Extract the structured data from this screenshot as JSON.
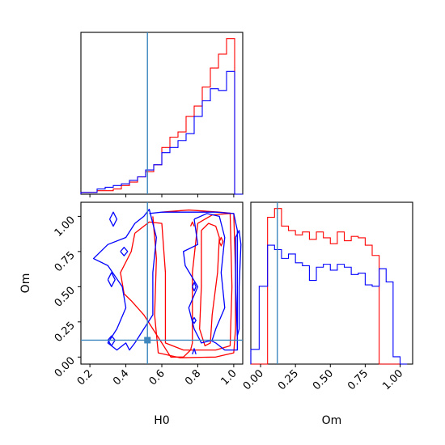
{
  "chart_data": [
    {
      "panel": "H0 marginal",
      "type": "step-histogram",
      "xlim": [
        0.15,
        1.05
      ],
      "bin_edges": [
        0.15,
        0.195,
        0.24,
        0.285,
        0.33,
        0.375,
        0.42,
        0.465,
        0.51,
        0.555,
        0.6,
        0.645,
        0.69,
        0.735,
        0.78,
        0.825,
        0.87,
        0.915,
        0.96,
        1.005,
        1.05
      ],
      "series": [
        {
          "color": "#ff0000",
          "values": [
            1,
            1,
            2,
            2,
            3,
            5,
            7,
            10,
            13,
            17,
            27,
            33,
            36,
            45,
            51,
            62,
            73,
            81,
            90,
            0
          ]
        },
        {
          "color": "#0000ff",
          "values": [
            1,
            1,
            3,
            4,
            5,
            6,
            8,
            10,
            14,
            17,
            24,
            27,
            31,
            35,
            45,
            54,
            61,
            60,
            71,
            0
          ]
        }
      ],
      "truth": 0.52,
      "y_tick_labels": false
    },
    {
      "panel": "Om marginal",
      "type": "step-histogram",
      "xlim": [
        -0.07,
        1.09
      ],
      "bin_edges": [
        -0.07,
        -0.01,
        0.05,
        0.1,
        0.15,
        0.2,
        0.25,
        0.3,
        0.35,
        0.4,
        0.45,
        0.5,
        0.55,
        0.6,
        0.65,
        0.7,
        0.75,
        0.8,
        0.85,
        0.9,
        0.95,
        1.0,
        1.05
      ],
      "series": [
        {
          "color": "#ff0000",
          "values": [
            0,
            0,
            100,
            106,
            94,
            91,
            88,
            90,
            85,
            90,
            86,
            82,
            90,
            84,
            87,
            86,
            81,
            74,
            0,
            0,
            0,
            0
          ]
        },
        {
          "color": "#0000ff",
          "values": [
            10,
            53,
            81,
            78,
            72,
            75,
            69,
            67,
            57,
            66,
            68,
            64,
            68,
            66,
            61,
            62,
            54,
            53,
            65,
            56,
            5,
            0
          ]
        }
      ],
      "truth": 0.12,
      "x_ticks": [
        "0.00",
        "0.25",
        "0.50",
        "0.75",
        "1.00"
      ],
      "xlabel": "Om"
    },
    {
      "panel": "H0 vs Om joint",
      "type": "contour",
      "xlim": [
        0.15,
        1.05
      ],
      "ylim": [
        -0.05,
        1.1
      ],
      "x_ticks": [
        "0.2",
        "0.4",
        "0.6",
        "0.8",
        "1.0"
      ],
      "y_ticks": [
        "0.00",
        "0.25",
        "0.50",
        "0.75",
        "1.00"
      ],
      "xlabel": "H0",
      "ylabel": "Om",
      "truth_point": {
        "x": 0.52,
        "y": 0.12
      },
      "red_contours": [
        [
          [
            0.6,
            1.03
          ],
          [
            0.75,
            1.045
          ],
          [
            0.92,
            1.03
          ],
          [
            1.0,
            1.02
          ],
          [
            1.01,
            0.6
          ],
          [
            1.01,
            0.2
          ],
          [
            1.0,
            0.03
          ],
          [
            0.9,
            0.0
          ],
          [
            0.7,
            -0.005
          ],
          [
            0.58,
            0.03
          ],
          [
            0.56,
            0.3
          ],
          [
            0.57,
            0.7
          ],
          [
            0.55,
            1.0
          ]
        ],
        [
          [
            0.45,
            0.88
          ],
          [
            0.53,
            0.96
          ],
          [
            0.6,
            0.95
          ],
          [
            0.62,
            0.6
          ],
          [
            0.62,
            0.1
          ],
          [
            0.72,
            0.05
          ],
          [
            0.9,
            0.05
          ],
          [
            0.98,
            0.08
          ],
          [
            0.99,
            0.5
          ],
          [
            0.98,
            1.02
          ],
          [
            0.88,
            1.01
          ],
          [
            0.8,
            0.95
          ],
          [
            0.77,
            0.6
          ],
          [
            0.77,
            0.1
          ],
          [
            0.76,
            0.05
          ],
          [
            0.72,
            0.0
          ],
          [
            0.65,
            0.0
          ],
          [
            0.6,
            0.1
          ],
          [
            0.55,
            0.2
          ],
          [
            0.5,
            0.3
          ],
          [
            0.43,
            0.4
          ],
          [
            0.39,
            0.45
          ],
          [
            0.37,
            0.6
          ],
          [
            0.43,
            0.75
          ],
          [
            0.45,
            0.88
          ]
        ],
        [
          [
            0.82,
            0.9
          ],
          [
            0.86,
            0.95
          ],
          [
            0.9,
            0.93
          ],
          [
            0.92,
            0.85
          ],
          [
            0.91,
            0.6
          ],
          [
            0.88,
            0.3
          ],
          [
            0.87,
            0.1
          ],
          [
            0.84,
            0.08
          ],
          [
            0.81,
            0.2
          ],
          [
            0.82,
            0.5
          ],
          [
            0.82,
            0.9
          ]
        ],
        [
          [
            0.76,
            0.93
          ],
          [
            0.77,
            0.96
          ],
          [
            0.78,
            0.93
          ]
        ],
        [
          [
            0.92,
            0.82
          ],
          [
            0.93,
            0.85
          ],
          [
            0.94,
            0.82
          ],
          [
            0.93,
            0.79
          ],
          [
            0.92,
            0.82
          ]
        ]
      ],
      "blue_contours": [
        [
          [
            0.53,
            1.02
          ],
          [
            0.6,
            1.03
          ],
          [
            0.75,
            1.03
          ],
          [
            0.9,
            1.03
          ],
          [
            1.0,
            1.02
          ],
          [
            1.02,
            0.9
          ],
          [
            1.02,
            0.5
          ],
          [
            1.02,
            0.05
          ],
          [
            0.95,
            0.05
          ],
          [
            0.9,
            0.1
          ],
          [
            0.87,
            0.12
          ]
        ],
        [
          [
            0.45,
            0.95
          ],
          [
            0.5,
            1.0
          ],
          [
            0.53,
            1.05
          ],
          [
            0.55,
            0.95
          ],
          [
            0.57,
            0.85
          ],
          [
            0.55,
            0.6
          ],
          [
            0.55,
            0.3
          ],
          [
            0.5,
            0.2
          ],
          [
            0.45,
            0.1
          ],
          [
            0.42,
            0.05
          ],
          [
            0.4,
            0.1
          ],
          [
            0.35,
            0.05
          ],
          [
            0.3,
            0.1
          ],
          [
            0.35,
            0.2
          ],
          [
            0.4,
            0.35
          ],
          [
            0.38,
            0.5
          ],
          [
            0.3,
            0.65
          ],
          [
            0.22,
            0.7
          ],
          [
            0.3,
            0.8
          ],
          [
            0.4,
            0.85
          ],
          [
            0.45,
            0.95
          ]
        ],
        [
          [
            0.31,
            0.98
          ],
          [
            0.33,
            1.03
          ],
          [
            0.35,
            0.98
          ],
          [
            0.33,
            0.93
          ],
          [
            0.31,
            0.98
          ]
        ],
        [
          [
            0.3,
            0.55
          ],
          [
            0.32,
            0.6
          ],
          [
            0.34,
            0.55
          ],
          [
            0.32,
            0.5
          ],
          [
            0.3,
            0.55
          ]
        ],
        [
          [
            0.3,
            0.12
          ],
          [
            0.32,
            0.15
          ],
          [
            0.34,
            0.12
          ],
          [
            0.32,
            0.08
          ],
          [
            0.3,
            0.12
          ]
        ],
        [
          [
            0.37,
            0.75
          ],
          [
            0.39,
            0.78
          ],
          [
            0.41,
            0.75
          ],
          [
            0.39,
            0.72
          ],
          [
            0.37,
            0.75
          ]
        ],
        [
          [
            0.78,
            0.98
          ],
          [
            0.85,
            1.02
          ],
          [
            0.92,
            1.0
          ],
          [
            0.95,
            0.85
          ],
          [
            0.93,
            0.6
          ],
          [
            0.95,
            0.35
          ],
          [
            0.9,
            0.2
          ],
          [
            0.88,
            0.12
          ],
          [
            0.82,
            0.1
          ],
          [
            0.78,
            0.2
          ],
          [
            0.75,
            0.35
          ],
          [
            0.8,
            0.5
          ],
          [
            0.73,
            0.65
          ],
          [
            0.72,
            0.75
          ],
          [
            0.8,
            0.8
          ],
          [
            0.78,
            0.98
          ]
        ],
        [
          [
            0.77,
            0.26
          ],
          [
            0.78,
            0.28
          ],
          [
            0.79,
            0.26
          ],
          [
            0.78,
            0.24
          ],
          [
            0.77,
            0.26
          ]
        ],
        [
          [
            0.77,
            0.5
          ],
          [
            0.78,
            0.53
          ],
          [
            0.79,
            0.5
          ],
          [
            0.78,
            0.47
          ],
          [
            0.77,
            0.5
          ]
        ],
        [
          [
            0.77,
            0.02
          ],
          [
            0.78,
            0.06
          ],
          [
            0.79,
            0.02
          ]
        ],
        [
          [
            1.01,
            0.85
          ],
          [
            1.03,
            0.9
          ],
          [
            1.04,
            0.8
          ],
          [
            1.03,
            0.5
          ],
          [
            1.03,
            0.2
          ],
          [
            1.02,
            0.15
          ],
          [
            1.01,
            0.5
          ],
          [
            1.01,
            0.85
          ]
        ]
      ]
    }
  ]
}
